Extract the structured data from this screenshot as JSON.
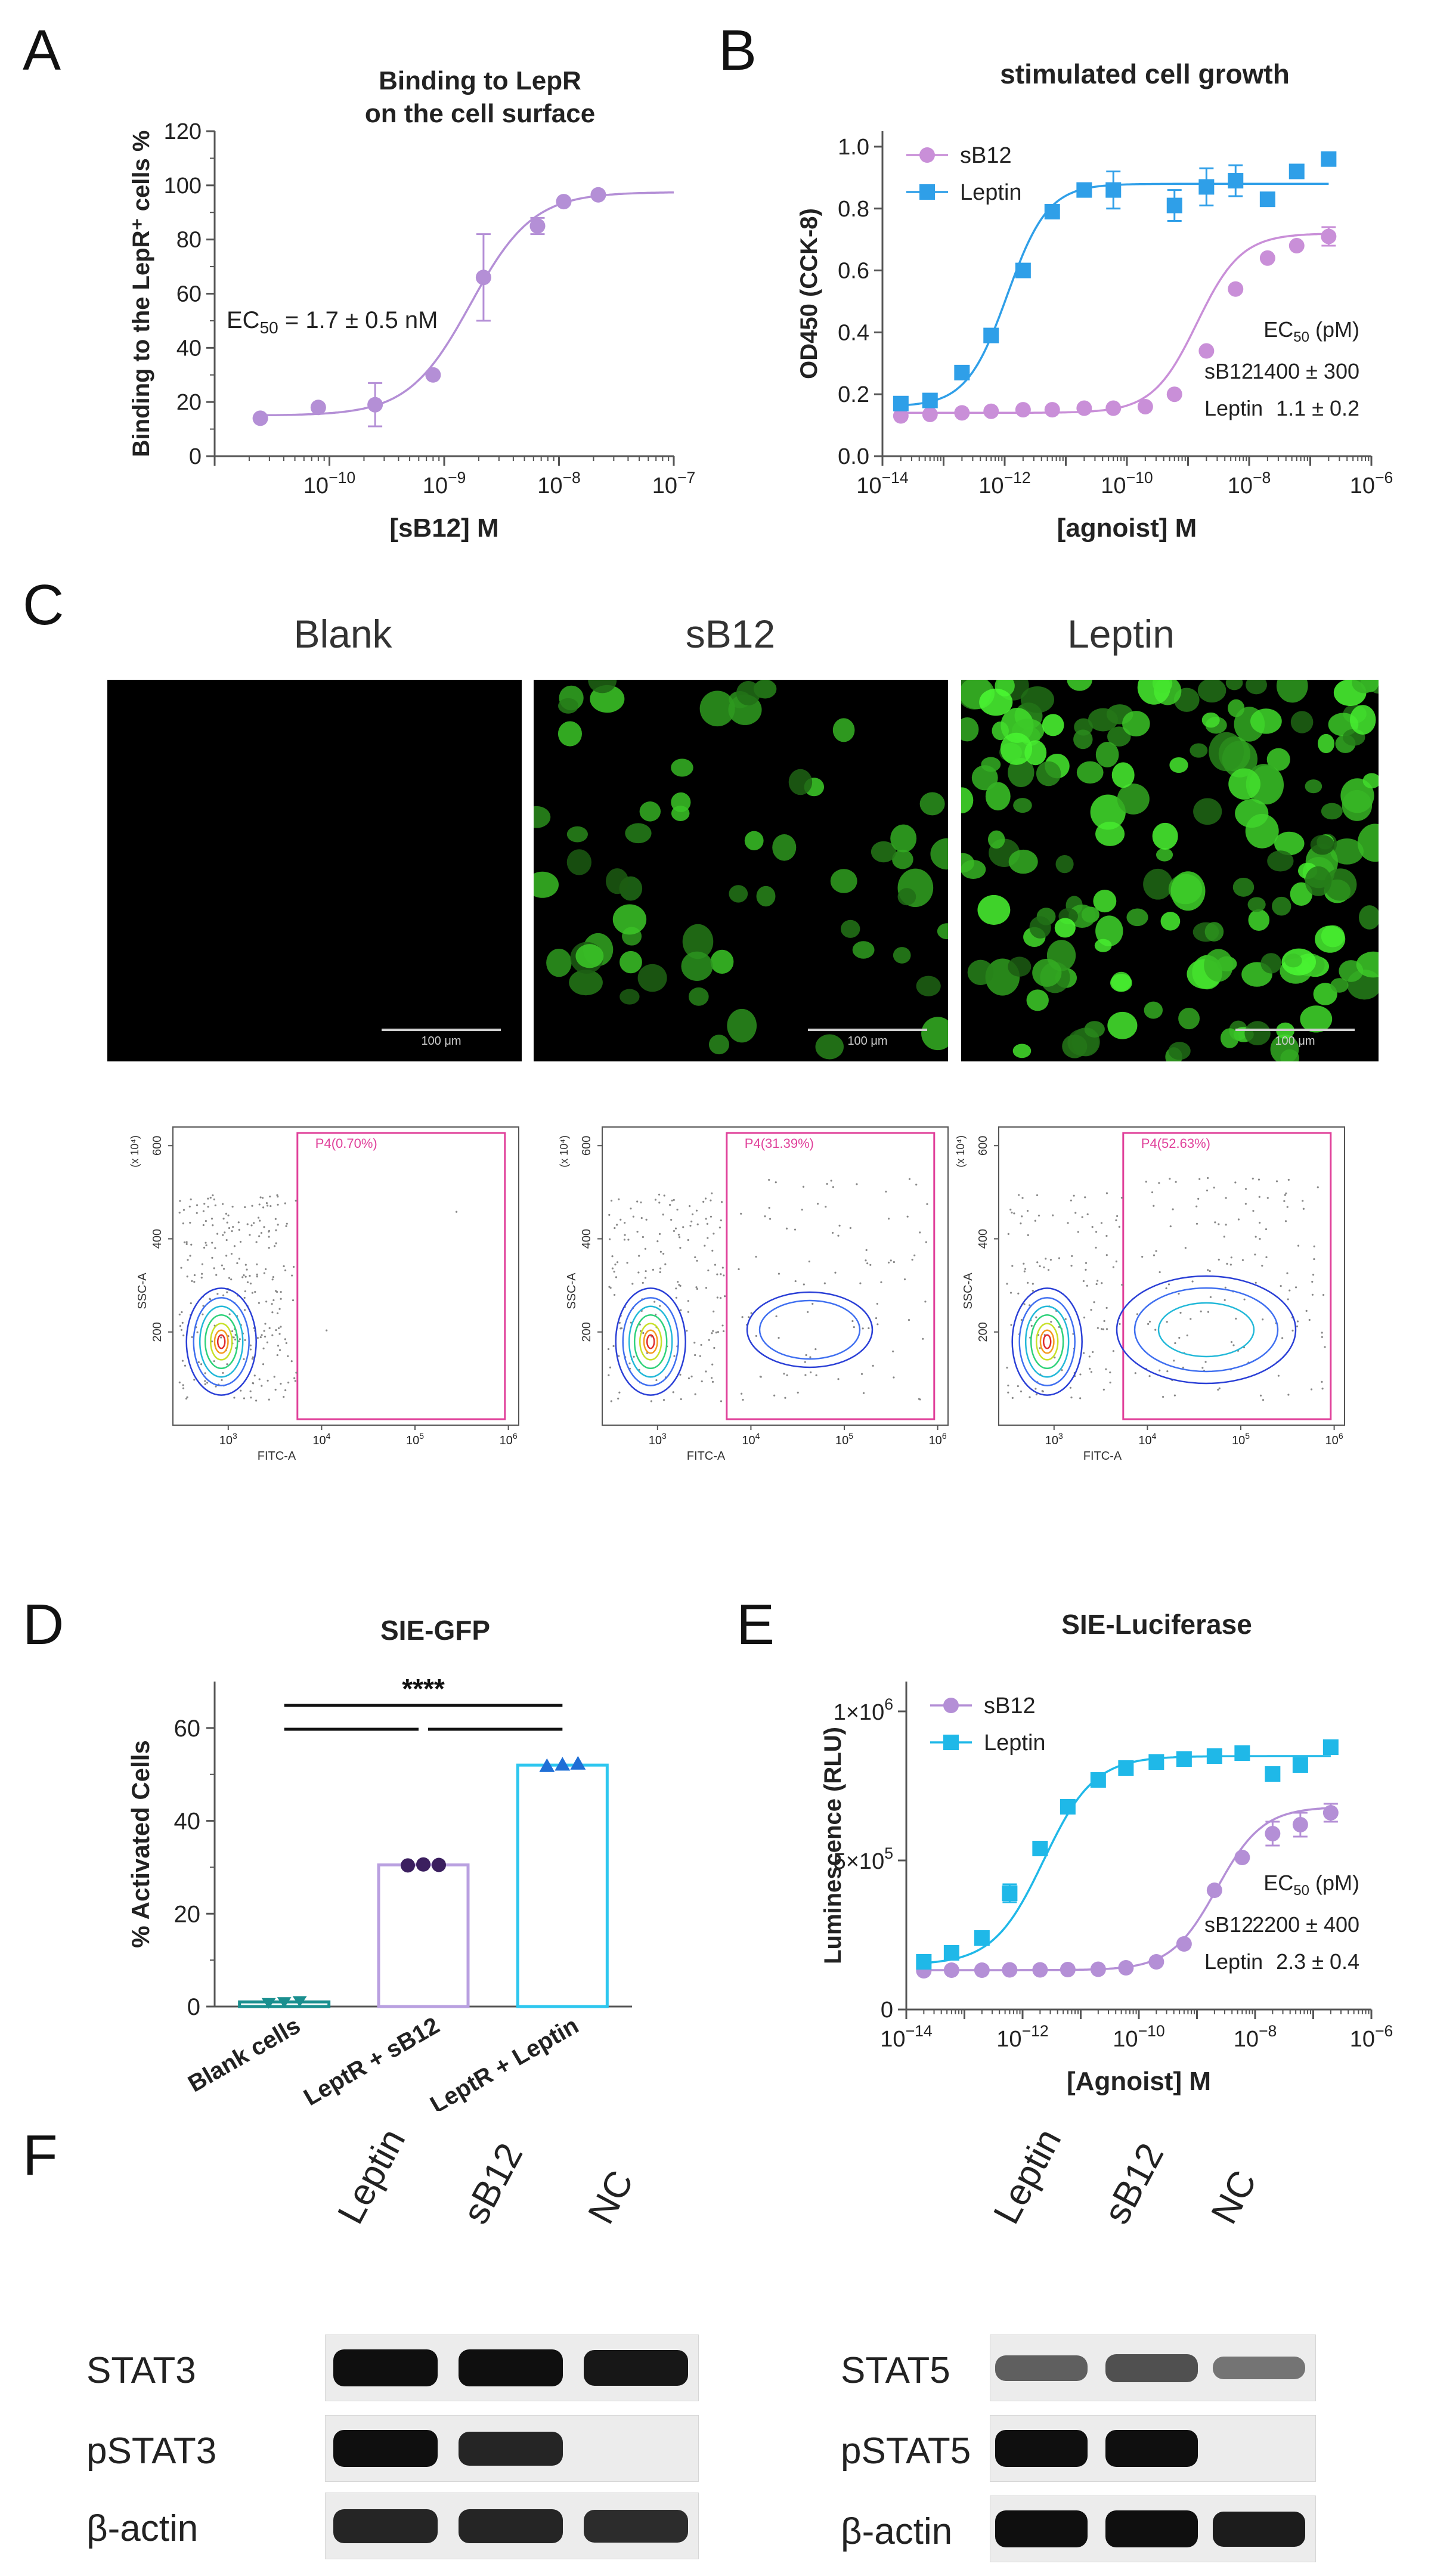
{
  "panels": {
    "a": "A",
    "b": "B",
    "c": "C",
    "d": "D",
    "e": "E",
    "f": "F"
  },
  "chart_data": [
    {
      "id": "A",
      "type": "scatter",
      "title": "Binding to LepR on the cell surface",
      "title_lines": [
        "Binding to LepR",
        "on the cell surface"
      ],
      "xlabel": "[sB12] M",
      "ylabel": "Binding to the LepR⁺ cells %",
      "xscale": "log",
      "xlim": [
        1e-11,
        1e-07
      ],
      "ylim": [
        0,
        120
      ],
      "yticks": [
        0,
        20,
        40,
        60,
        80,
        100,
        120
      ],
      "xtick_exponents": [
        -10,
        -9,
        -8,
        -7
      ],
      "annotation": "EC₅₀ = 1.7 ± 0.5 nM",
      "series": [
        {
          "color": "#b48fd6",
          "points": [
            {
              "x": 2.5e-11,
              "y": 14
            },
            {
              "x": 8e-11,
              "y": 18
            },
            {
              "x": 2.5e-10,
              "y": 19,
              "err": 8
            },
            {
              "x": 8e-10,
              "y": 30
            },
            {
              "x": 2.2e-09,
              "y": 66,
              "err": 16
            },
            {
              "x": 6.5e-09,
              "y": 85,
              "err": 3
            },
            {
              "x": 1.1e-08,
              "y": 94
            },
            {
              "x": 2.2e-08,
              "y": 96.5
            }
          ],
          "fit": {
            "bottom": 15,
            "top": 97.5,
            "ec50": 1.7e-09,
            "hill": 1.6
          }
        }
      ]
    },
    {
      "id": "B",
      "type": "scatter",
      "title": "stimulated cell growth",
      "xlabel": "[agnoist] M",
      "ylabel": "OD450 (CCK-8)",
      "xscale": "log",
      "xlim": [
        1e-14,
        1e-06
      ],
      "ylim": [
        0,
        1.05
      ],
      "yticks": [
        "0.0",
        "0.2",
        "0.4",
        "0.6",
        "0.8",
        "1.0"
      ],
      "xtick_exponents": [
        -14,
        -12,
        -10,
        -8,
        -6
      ],
      "legend": [
        "sB12",
        "Leptin"
      ],
      "ec50_header": "EC₅₀ (pM)",
      "ec50_rows": [
        [
          "sB12",
          "1400 ± 300"
        ],
        [
          "Leptin",
          "1.1 ± 0.2"
        ]
      ],
      "series": [
        {
          "name": "sB12",
          "color": "#c98fd8",
          "marker": "circle",
          "points": [
            {
              "x": 2e-14,
              "y": 0.13
            },
            {
              "x": 6e-14,
              "y": 0.135
            },
            {
              "x": 2e-13,
              "y": 0.14
            },
            {
              "x": 6e-13,
              "y": 0.145
            },
            {
              "x": 2e-12,
              "y": 0.15
            },
            {
              "x": 6e-12,
              "y": 0.15
            },
            {
              "x": 2e-11,
              "y": 0.155
            },
            {
              "x": 6e-11,
              "y": 0.155
            },
            {
              "x": 2e-10,
              "y": 0.16
            },
            {
              "x": 6e-10,
              "y": 0.2
            },
            {
              "x": 2e-09,
              "y": 0.34
            },
            {
              "x": 6e-09,
              "y": 0.54
            },
            {
              "x": 2e-08,
              "y": 0.64
            },
            {
              "x": 6e-08,
              "y": 0.68
            },
            {
              "x": 2e-07,
              "y": 0.71,
              "err": 0.03
            }
          ],
          "fit": {
            "bottom": 0.14,
            "top": 0.72,
            "ec50": 1.4e-09,
            "hill": 1.2
          }
        },
        {
          "name": "Leptin",
          "color": "#2f9fe8",
          "marker": "square",
          "points": [
            {
              "x": 2e-14,
              "y": 0.17
            },
            {
              "x": 6e-14,
              "y": 0.18
            },
            {
              "x": 2e-13,
              "y": 0.27
            },
            {
              "x": 6e-13,
              "y": 0.39
            },
            {
              "x": 2e-12,
              "y": 0.6
            },
            {
              "x": 6e-12,
              "y": 0.79
            },
            {
              "x": 2e-11,
              "y": 0.86
            },
            {
              "x": 6e-11,
              "y": 0.86,
              "err": 0.06
            },
            {
              "x": 6e-10,
              "y": 0.81,
              "err": 0.05
            },
            {
              "x": 2e-09,
              "y": 0.87,
              "err": 0.06
            },
            {
              "x": 6e-09,
              "y": 0.89,
              "err": 0.05
            },
            {
              "x": 2e-08,
              "y": 0.83
            },
            {
              "x": 6e-08,
              "y": 0.92
            },
            {
              "x": 2e-07,
              "y": 0.96
            }
          ],
          "fit": {
            "bottom": 0.16,
            "top": 0.88,
            "ec50": 1.1e-12,
            "hill": 1.3
          }
        }
      ]
    },
    {
      "id": "D",
      "type": "bar",
      "title": "SIE-GFP",
      "ylabel": "% Activated Cells",
      "ylim": [
        0,
        70
      ],
      "yticks": [
        0,
        20,
        40,
        60
      ],
      "categories": [
        "Blank cells",
        "LeptR + sB12",
        "LeptR + Leptin"
      ],
      "values": [
        1.0,
        30.5,
        52.0
      ],
      "replicates": [
        [
          0.8,
          1.0,
          1.2
        ],
        [
          30.4,
          30.6,
          30.5
        ],
        [
          51.8,
          52.1,
          52.3
        ]
      ],
      "bar_colors": [
        "#1a8f8f",
        "#b9a0e0",
        "#2ec7ef"
      ],
      "dot_colors": [
        "#1a8f8f",
        "#3b1f5f",
        "#1f6fd6"
      ],
      "significance": "****"
    },
    {
      "id": "E",
      "type": "scatter",
      "title": "SIE-Luciferase",
      "xlabel": "[Agnoist] M",
      "ylabel": "Luminescence (RLU)",
      "xscale": "log",
      "xlim": [
        1e-14,
        1e-06
      ],
      "ylim": [
        0,
        1100000
      ],
      "ytick_values": [
        0,
        500000,
        1000000
      ],
      "ytick_labels": [
        "0",
        "5×10⁵",
        "1×10⁶"
      ],
      "xtick_exponents": [
        -14,
        -12,
        -10,
        -8,
        -6
      ],
      "legend": [
        "sB12",
        "Leptin"
      ],
      "ec50_header": "EC₅₀ (pM)",
      "ec50_rows": [
        [
          "sB12",
          "2200 ± 400"
        ],
        [
          "Leptin",
          "2.3 ± 0.4"
        ]
      ],
      "series": [
        {
          "name": "sB12",
          "color": "#b48fd6",
          "marker": "circle",
          "points": [
            {
              "x": 2e-14,
              "y": 130000
            },
            {
              "x": 6e-14,
              "y": 132000
            },
            {
              "x": 2e-13,
              "y": 132000
            },
            {
              "x": 6e-13,
              "y": 133000
            },
            {
              "x": 2e-12,
              "y": 133000
            },
            {
              "x": 6e-12,
              "y": 134000
            },
            {
              "x": 2e-11,
              "y": 135000
            },
            {
              "x": 6e-11,
              "y": 140000
            },
            {
              "x": 2e-10,
              "y": 160000
            },
            {
              "x": 6e-10,
              "y": 220000
            },
            {
              "x": 2e-09,
              "y": 400000
            },
            {
              "x": 6e-09,
              "y": 510000
            },
            {
              "x": 2e-08,
              "y": 590000,
              "err": 40000
            },
            {
              "x": 6e-08,
              "y": 620000,
              "err": 40000
            },
            {
              "x": 2e-07,
              "y": 660000,
              "err": 30000
            }
          ],
          "fit": {
            "bottom": 132000,
            "top": 680000,
            "ec50": 2.2e-09,
            "hill": 1.1
          }
        },
        {
          "name": "Leptin",
          "color": "#1fb8e8",
          "marker": "square",
          "points": [
            {
              "x": 2e-14,
              "y": 160000
            },
            {
              "x": 6e-14,
              "y": 190000
            },
            {
              "x": 2e-13,
              "y": 240000
            },
            {
              "x": 6e-13,
              "y": 390000,
              "err": 30000
            },
            {
              "x": 2e-12,
              "y": 540000
            },
            {
              "x": 6e-12,
              "y": 680000
            },
            {
              "x": 2e-11,
              "y": 770000
            },
            {
              "x": 6e-11,
              "y": 810000
            },
            {
              "x": 2e-10,
              "y": 830000
            },
            {
              "x": 6e-10,
              "y": 840000
            },
            {
              "x": 2e-09,
              "y": 850000
            },
            {
              "x": 6e-09,
              "y": 860000
            },
            {
              "x": 2e-08,
              "y": 790000
            },
            {
              "x": 6e-08,
              "y": 820000
            },
            {
              "x": 2e-07,
              "y": 880000,
              "err": 20000
            }
          ],
          "fit": {
            "bottom": 150000,
            "top": 850000,
            "ec50": 2.3e-12,
            "hill": 1.0
          }
        }
      ]
    }
  ],
  "micrographs": {
    "labels": [
      "Blank",
      "sB12",
      "Leptin"
    ],
    "scale": "100 μm",
    "density": [
      0.0,
      0.35,
      1.0
    ]
  },
  "flow": {
    "gates": [
      "P4(0.70%)",
      "P4(31.39%)",
      "P4(52.63%)"
    ],
    "xlabel": "FITC-A",
    "ylabel": "SSC-A",
    "y_multiplier": "(x 10⁴)",
    "yticks": [
      "200",
      "400",
      "600"
    ],
    "xtick_exponents": [
      "3",
      "4",
      "5",
      "6"
    ],
    "activated_fraction": [
      0.007,
      0.3139,
      0.5263
    ]
  },
  "western": {
    "left": {
      "lanes": [
        "Leptin",
        "sB12",
        "NC"
      ],
      "rows": [
        {
          "label": "STAT3",
          "intensity": [
            1.0,
            1.0,
            0.95
          ]
        },
        {
          "label": "pSTAT3",
          "intensity": [
            1.0,
            0.85,
            0.0
          ]
        },
        {
          "label": "β-actin",
          "intensity": [
            0.85,
            0.85,
            0.8
          ]
        }
      ]
    },
    "right": {
      "lanes": [
        "Leptin",
        "sB12",
        "NC"
      ],
      "rows": [
        {
          "label": "STAT5",
          "intensity": [
            0.45,
            0.55,
            0.3
          ]
        },
        {
          "label": "pSTAT5",
          "intensity": [
            1.0,
            1.0,
            0.0
          ]
        },
        {
          "label": "β-actin",
          "intensity": [
            1.0,
            1.0,
            0.9
          ]
        }
      ]
    }
  }
}
